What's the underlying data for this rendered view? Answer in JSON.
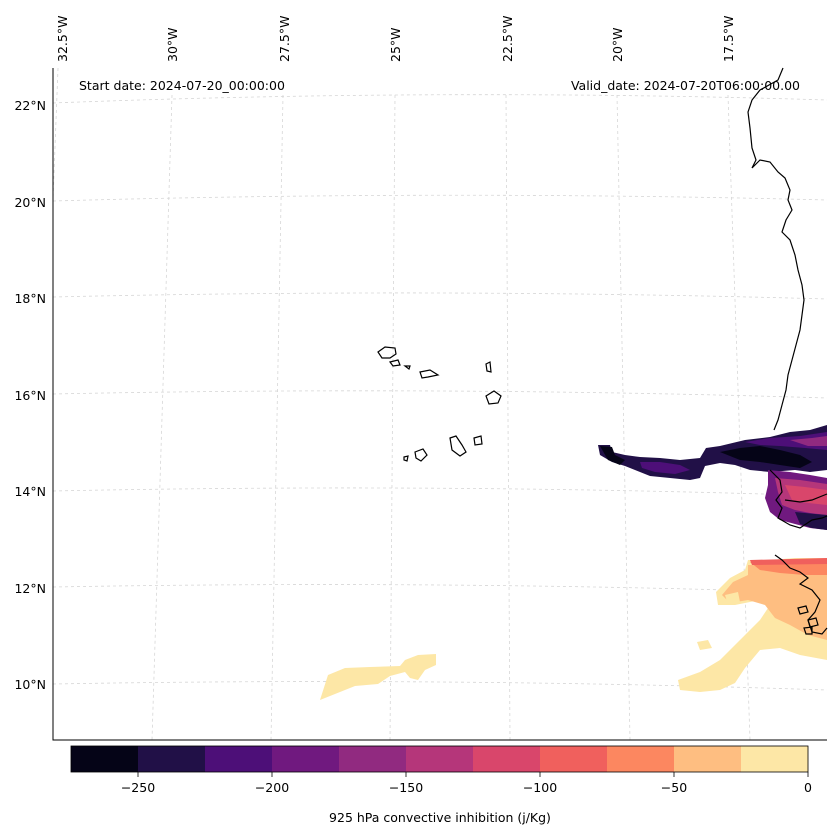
{
  "annotations": {
    "start_date": "Start date: 2024-07-20_00:00:00",
    "valid_date": "Valid_date: 2024-07-20T06:00:00.00"
  },
  "longitude_labels": [
    "32.5°W",
    "30°W",
    "27.5°W",
    "25°W",
    "22.5°W",
    "20°W",
    "17.5°W"
  ],
  "latitude_labels": [
    "22°N",
    "20°N",
    "18°N",
    "16°N",
    "14°N",
    "12°N",
    "10°N"
  ],
  "colorbar": {
    "label": "925 hPa convective inhibition (j/Kg)",
    "tick_labels": [
      "−250",
      "−200",
      "−150",
      "−100",
      "−50",
      "0"
    ],
    "levels": [
      -275,
      -250,
      -225,
      -200,
      -175,
      -150,
      -125,
      -100,
      -75,
      -50,
      -25,
      0
    ],
    "colors": [
      "#050417",
      "#211047",
      "#4d0f78",
      "#70197f",
      "#912a80",
      "#b5367a",
      "#d9466b",
      "#f0605d",
      "#fc8760",
      "#febe81",
      "#fde7a6"
    ]
  },
  "map_style": {
    "coastline_color": "#000000",
    "gridline_color": "#d0d0d0",
    "background": "#ffffff"
  }
}
